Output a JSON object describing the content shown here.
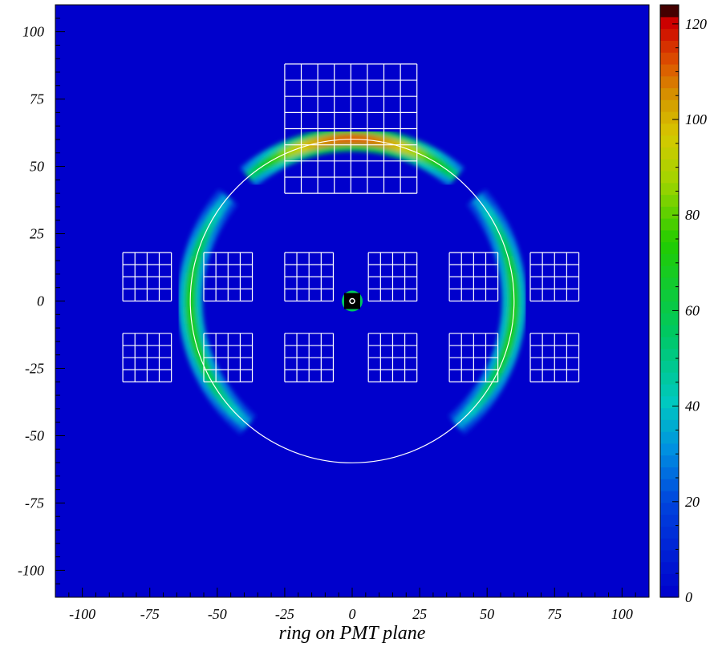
{
  "chart_data": {
    "type": "heatmap",
    "title": "",
    "xlabel": "ring on PMT plane",
    "ylabel": "",
    "xlim": [
      -110,
      110
    ],
    "ylim": [
      -110,
      110
    ],
    "x_ticks": [
      -100,
      -75,
      -50,
      -25,
      0,
      25,
      50,
      75,
      100
    ],
    "x_tick_labels": [
      "-100",
      "-75",
      "-50",
      "-25",
      "0",
      "25",
      "50",
      "75",
      "100"
    ],
    "y_ticks": [
      -100,
      -75,
      -50,
      -25,
      0,
      25,
      50,
      75,
      100
    ],
    "y_tick_labels": [
      "-100",
      "-75",
      "-50",
      "-25",
      "0",
      "25",
      "50",
      "75",
      "100"
    ],
    "colorbar": {
      "range": [
        0,
        124
      ],
      "ticks": [
        0,
        20,
        40,
        60,
        80,
        100,
        120
      ],
      "tick_labels": [
        "0",
        "20",
        "40",
        "60",
        "80",
        "100",
        "120"
      ]
    },
    "background_counts": 2,
    "ring_bands": [
      {
        "center_x": 0,
        "center_y": 0,
        "radius": 60,
        "arc_from_deg": 50,
        "arc_to_deg": 130,
        "peak_counts": 110
      },
      {
        "center_x": 0,
        "center_y": 0,
        "radius": 60,
        "arc_from_deg": 140,
        "arc_to_deg": 230,
        "peak_counts": 70
      },
      {
        "center_x": 0,
        "center_y": 0,
        "radius": 60,
        "arc_from_deg": -50,
        "arc_to_deg": 40,
        "peak_counts": 70
      }
    ],
    "central_spot": {
      "x": 0,
      "y": 0,
      "peak_counts": 124
    },
    "overlay_circle": {
      "center_x": 0,
      "center_y": 0,
      "radius": 60
    },
    "pmt_grids": [
      {
        "x0": -85,
        "x1": -67,
        "y0": 0,
        "y1": 18,
        "nx": 4,
        "ny": 4
      },
      {
        "x0": -55,
        "x1": -37,
        "y0": 0,
        "y1": 18,
        "nx": 4,
        "ny": 4
      },
      {
        "x0": -25,
        "x1": -7,
        "y0": 0,
        "y1": 18,
        "nx": 4,
        "ny": 4
      },
      {
        "x0": 6,
        "x1": 24,
        "y0": 0,
        "y1": 18,
        "nx": 4,
        "ny": 4
      },
      {
        "x0": 36,
        "x1": 54,
        "y0": 0,
        "y1": 18,
        "nx": 4,
        "ny": 4
      },
      {
        "x0": 66,
        "x1": 84,
        "y0": 0,
        "y1": 18,
        "nx": 4,
        "ny": 4
      },
      {
        "x0": -85,
        "x1": -67,
        "y0": -30,
        "y1": -12,
        "nx": 4,
        "ny": 4
      },
      {
        "x0": -55,
        "x1": -37,
        "y0": -30,
        "y1": -12,
        "nx": 4,
        "ny": 4
      },
      {
        "x0": -25,
        "x1": -7,
        "y0": -30,
        "y1": -12,
        "nx": 4,
        "ny": 4
      },
      {
        "x0": 6,
        "x1": 24,
        "y0": -30,
        "y1": -12,
        "nx": 4,
        "ny": 4
      },
      {
        "x0": 36,
        "x1": 54,
        "y0": -30,
        "y1": -12,
        "nx": 4,
        "ny": 4
      },
      {
        "x0": 66,
        "x1": 84,
        "y0": -30,
        "y1": -12,
        "nx": 4,
        "ny": 4
      },
      {
        "x0": -25,
        "x1": 24,
        "y0": 40,
        "y1": 88,
        "nx": 8,
        "ny": 8
      }
    ],
    "colors": {
      "background": "#0000cc",
      "grid_lines": "#ffffff",
      "circle": "#ffffff",
      "spot": "#000000"
    }
  }
}
